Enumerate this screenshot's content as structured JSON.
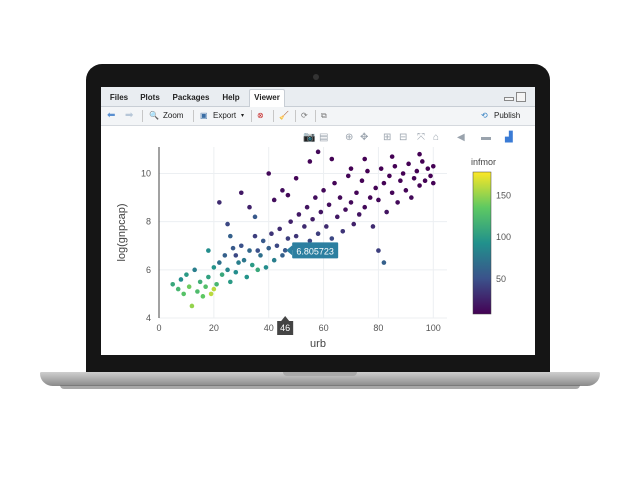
{
  "tabs": [
    {
      "label": "Files"
    },
    {
      "label": "Plots"
    },
    {
      "label": "Packages"
    },
    {
      "label": "Help"
    },
    {
      "label": "Viewer"
    }
  ],
  "toolbar": {
    "zoom_label": "Zoom",
    "export_label": "Export",
    "publish_label": "Publish"
  },
  "chart_data": {
    "type": "scatter",
    "xlabel": "urb",
    "ylabel": "log(gnpcap)",
    "xlim": [
      0,
      105
    ],
    "ylim": [
      4,
      11.1
    ],
    "xticks": [
      0,
      20,
      40,
      60,
      80,
      100
    ],
    "yticks": [
      4,
      6,
      8,
      10
    ],
    "colorbar": {
      "title": "infmor",
      "ticks": [
        50,
        100,
        150
      ],
      "range": [
        8,
        178
      ],
      "colors": [
        "#440154",
        "#3b528b",
        "#21918c",
        "#5ec962",
        "#fde725"
      ]
    },
    "hover": {
      "x_label": "46",
      "y_label": "6.805723",
      "x": 46,
      "y": 6.81
    },
    "points": [
      [
        5,
        5.4,
        110
      ],
      [
        7,
        5.2,
        120
      ],
      [
        8,
        5.6,
        90
      ],
      [
        9,
        5.0,
        130
      ],
      [
        10,
        5.8,
        100
      ],
      [
        11,
        5.3,
        140
      ],
      [
        12,
        4.5,
        150
      ],
      [
        13,
        6.0,
        80
      ],
      [
        14,
        5.1,
        125
      ],
      [
        15,
        5.5,
        115
      ],
      [
        16,
        4.9,
        135
      ],
      [
        17,
        5.3,
        128
      ],
      [
        18,
        5.7,
        105
      ],
      [
        19,
        5.0,
        160
      ],
      [
        20,
        6.1,
        95
      ],
      [
        21,
        5.4,
        120
      ],
      [
        22,
        6.3,
        70
      ],
      [
        23,
        5.8,
        110
      ],
      [
        24,
        6.6,
        60
      ],
      [
        25,
        6.0,
        85
      ],
      [
        26,
        5.5,
        100
      ],
      [
        27,
        6.9,
        55
      ],
      [
        28,
        5.9,
        90
      ],
      [
        29,
        6.3,
        80
      ],
      [
        30,
        7.0,
        50
      ],
      [
        31,
        6.4,
        75
      ],
      [
        32,
        5.7,
        95
      ],
      [
        33,
        6.8,
        65
      ],
      [
        34,
        6.2,
        100
      ],
      [
        35,
        7.4,
        40
      ],
      [
        36,
        6.0,
        110
      ],
      [
        37,
        6.6,
        70
      ],
      [
        38,
        7.2,
        55
      ],
      [
        39,
        6.1,
        90
      ],
      [
        40,
        6.9,
        60
      ],
      [
        41,
        7.5,
        35
      ],
      [
        42,
        6.4,
        80
      ],
      [
        43,
        7.0,
        45
      ],
      [
        44,
        7.7,
        30
      ],
      [
        45,
        6.6,
        60
      ],
      [
        46,
        6.81,
        55
      ],
      [
        47,
        7.3,
        40
      ],
      [
        48,
        8.0,
        25
      ],
      [
        49,
        6.9,
        60
      ],
      [
        50,
        7.4,
        35
      ],
      [
        51,
        8.3,
        20
      ],
      [
        52,
        7.0,
        50
      ],
      [
        53,
        7.8,
        30
      ],
      [
        54,
        8.6,
        18
      ],
      [
        55,
        7.2,
        45
      ],
      [
        56,
        8.1,
        22
      ],
      [
        57,
        9.0,
        15
      ],
      [
        58,
        7.5,
        40
      ],
      [
        59,
        8.4,
        18
      ],
      [
        60,
        9.3,
        12
      ],
      [
        61,
        7.8,
        30
      ],
      [
        62,
        8.7,
        15
      ],
      [
        63,
        7.3,
        45
      ],
      [
        64,
        9.6,
        10
      ],
      [
        65,
        8.2,
        20
      ],
      [
        66,
        9.0,
        12
      ],
      [
        67,
        7.6,
        35
      ],
      [
        68,
        8.5,
        15
      ],
      [
        69,
        9.9,
        10
      ],
      [
        70,
        8.8,
        12
      ],
      [
        71,
        7.9,
        25
      ],
      [
        72,
        9.2,
        10
      ],
      [
        73,
        8.3,
        18
      ],
      [
        74,
        9.7,
        9
      ],
      [
        75,
        8.6,
        12
      ],
      [
        76,
        10.1,
        8
      ],
      [
        77,
        9.0,
        10
      ],
      [
        78,
        7.8,
        30
      ],
      [
        79,
        9.4,
        9
      ],
      [
        80,
        8.9,
        12
      ],
      [
        81,
        10.2,
        8
      ],
      [
        82,
        9.6,
        9
      ],
      [
        83,
        8.4,
        18
      ],
      [
        84,
        9.9,
        8
      ],
      [
        85,
        9.2,
        10
      ],
      [
        86,
        10.3,
        8
      ],
      [
        87,
        8.8,
        12
      ],
      [
        88,
        9.7,
        9
      ],
      [
        89,
        10.0,
        8
      ],
      [
        90,
        9.3,
        10
      ],
      [
        91,
        10.4,
        8
      ],
      [
        92,
        9.0,
        12
      ],
      [
        93,
        9.8,
        9
      ],
      [
        94,
        10.1,
        8
      ],
      [
        95,
        9.5,
        9
      ],
      [
        96,
        10.5,
        8
      ],
      [
        97,
        9.7,
        9
      ],
      [
        98,
        10.2,
        8
      ],
      [
        99,
        9.9,
        8
      ],
      [
        100,
        10.3,
        8
      ],
      [
        100,
        9.6,
        9
      ],
      [
        58,
        10.9,
        12
      ],
      [
        30,
        9.2,
        20
      ],
      [
        35,
        8.2,
        55
      ],
      [
        22,
        8.8,
        30
      ],
      [
        40,
        10.0,
        12
      ],
      [
        45,
        9.3,
        15
      ],
      [
        50,
        9.8,
        10
      ],
      [
        55,
        10.5,
        10
      ],
      [
        26,
        7.4,
        60
      ],
      [
        18,
        6.8,
        90
      ],
      [
        25,
        7.9,
        45
      ],
      [
        33,
        8.6,
        25
      ],
      [
        42,
        8.9,
        15
      ],
      [
        47,
        9.1,
        12
      ],
      [
        63,
        10.6,
        9
      ],
      [
        70,
        10.2,
        8
      ],
      [
        75,
        10.6,
        8
      ],
      [
        85,
        10.7,
        8
      ],
      [
        95,
        10.8,
        8
      ],
      [
        80,
        6.8,
        40
      ],
      [
        82,
        6.3,
        60
      ],
      [
        20,
        5.2,
        160
      ],
      [
        28,
        6.6,
        45
      ],
      [
        36,
        6.8,
        50
      ]
    ]
  }
}
